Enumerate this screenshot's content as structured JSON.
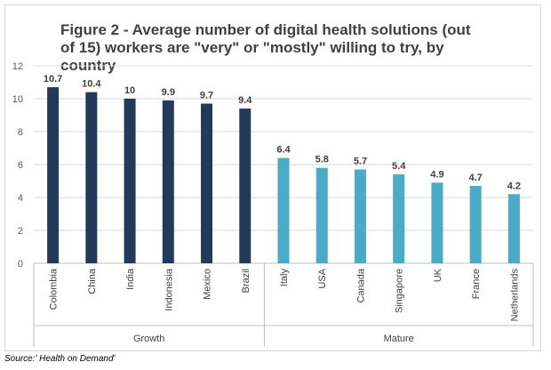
{
  "chart_data": {
    "type": "bar",
    "title": "Figure 2 - Average number of digital health solutions (out of 15) workers are \"very\" or \"mostly\" willing to try, by country",
    "categories": [
      "Colombia",
      "China",
      "India",
      "Indonesia",
      "Mexico",
      "Brazil",
      "Italy",
      "USA",
      "Canada",
      "Singapore",
      "UK",
      "France",
      "Netherlands"
    ],
    "values": [
      10.7,
      10.4,
      10,
      9.9,
      9.7,
      9.4,
      6.4,
      5.8,
      5.7,
      5.4,
      4.9,
      4.7,
      4.2
    ],
    "data_labels": [
      "10.7",
      "10.4",
      "10",
      "9.9",
      "9.7",
      "9.4",
      "6.4",
      "5.8",
      "5.7",
      "5.4",
      "4.9",
      "4.7",
      "4.2"
    ],
    "groups": [
      {
        "name": "Growth",
        "count": 6,
        "color": "#243a5a"
      },
      {
        "name": "Mature",
        "count": 7,
        "color": "#4aabc6"
      }
    ],
    "ylim": [
      0,
      12
    ],
    "yticks": [
      0,
      2,
      4,
      6,
      8,
      10,
      12
    ],
    "xlabel": "",
    "ylabel": "",
    "grid": true
  },
  "source": "Source:' Health on Demand'"
}
